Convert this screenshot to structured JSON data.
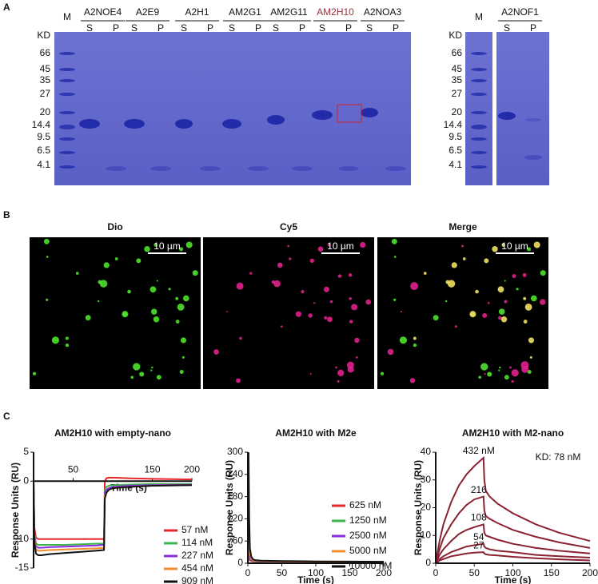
{
  "panel_labels": [
    "A",
    "B",
    "C"
  ],
  "gel_left": {
    "marker": "M",
    "unit": "KD",
    "weights": [
      "66",
      "45",
      "35",
      "27",
      "20",
      "14.4",
      "9.5",
      "6.5",
      "4.1"
    ],
    "lanes": [
      {
        "name": "A2NOE4",
        "fractions": [
          "S",
          "P"
        ]
      },
      {
        "name": "A2E9",
        "fractions": [
          "S",
          "P"
        ]
      },
      {
        "name": "A2H1",
        "fractions": [
          "S",
          "P"
        ]
      },
      {
        "name": "AM2G1",
        "fractions": [
          "S",
          "P"
        ]
      },
      {
        "name": "AM2G11",
        "fractions": [
          "S",
          "P"
        ]
      },
      {
        "name": "AM2H10",
        "fractions": [
          "S",
          "P"
        ],
        "color": "#a0303a"
      },
      {
        "name": "A2NOA3",
        "fractions": [
          "S",
          "P"
        ]
      }
    ]
  },
  "gel_right": {
    "marker": "M",
    "unit": "KD",
    "weights": [
      "66",
      "45",
      "35",
      "27",
      "20",
      "14.4",
      "9.5",
      "6.5",
      "4.1"
    ],
    "lanes": [
      {
        "name": "A2NOF1",
        "fractions": [
          "S",
          "P"
        ]
      }
    ]
  },
  "microscopy": {
    "panels": [
      {
        "title": "Dio",
        "scale_bar": "10 µm"
      },
      {
        "title": "Cy5",
        "scale_bar": "10 µm"
      },
      {
        "title": "Merge",
        "scale_bar": "10 µm"
      }
    ]
  },
  "chart_data": [
    {
      "type": "line",
      "title": "AM2H10 with empty-nano",
      "x_label": "Time (s)",
      "y_label": "Response Units (RU)",
      "x": [
        0,
        1,
        3,
        6,
        10,
        20,
        40,
        60,
        80,
        89,
        90,
        92,
        95,
        100,
        120,
        150,
        200
      ],
      "xlim": [
        0,
        200
      ],
      "xticks": [
        50,
        150,
        200
      ],
      "ylim": [
        -15,
        5
      ],
      "yticks": [
        -15,
        -10,
        0,
        5
      ],
      "legend": "lower right",
      "series": [
        {
          "name": "57 nM",
          "color": "#e8262a",
          "values": [
            0,
            -8,
            -9.8,
            -10,
            -10,
            -10,
            -10,
            -10,
            -10,
            -10,
            0,
            0.5,
            0.6,
            0.6,
            0.5,
            0.4,
            0.3
          ]
        },
        {
          "name": "114 nM",
          "color": "#3cb44b",
          "values": [
            0,
            -9,
            -10.8,
            -11,
            -11,
            -11,
            -11,
            -10.9,
            -10.8,
            -10.8,
            -1.5,
            -1,
            -0.8,
            -0.7,
            -0.6,
            -0.5,
            -0.5
          ]
        },
        {
          "name": "227 nM",
          "color": "#8b2be2",
          "values": [
            0,
            -9.5,
            -11.2,
            -11.5,
            -11.5,
            -11.4,
            -11.3,
            -11.2,
            -11.1,
            -11,
            -2,
            -1.5,
            -1.2,
            -1,
            -0.8,
            -0.7,
            -0.6
          ]
        },
        {
          "name": "454 nM",
          "color": "#f28c28",
          "values": [
            0,
            -10,
            -11.8,
            -12,
            -12,
            -11.9,
            -11.8,
            -11.7,
            -11.6,
            -11.5,
            -2.5,
            -2,
            -1.5,
            -1.2,
            -1,
            -0.8,
            -0.7
          ]
        },
        {
          "name": "909 nM",
          "color": "#111111",
          "values": [
            0,
            -10.5,
            -12.5,
            -12.8,
            -12.8,
            -12.6,
            -12.4,
            -12.2,
            -12,
            -11.9,
            -3,
            -2,
            -1.5,
            -1.2,
            -1,
            -0.8,
            -0.7
          ]
        }
      ]
    },
    {
      "type": "line",
      "title": "AM2H10 with M2e",
      "x_label": "Time (s)",
      "y_label": "Response Units (RU)",
      "x": [
        0,
        1,
        2,
        3,
        5,
        8,
        12,
        20,
        50,
        100,
        150,
        200
      ],
      "xlim": [
        0,
        200
      ],
      "xticks": [
        0,
        50,
        100,
        150,
        200
      ],
      "ylim": [
        0,
        300
      ],
      "yticks": [
        0,
        60,
        120,
        180,
        240,
        300
      ],
      "legend": "center right",
      "series": [
        {
          "name": "625 nM",
          "color": "#e8262a",
          "values": [
            0,
            20,
            12,
            8,
            6,
            5,
            4.5,
            4,
            3.5,
            3,
            2.5,
            2
          ]
        },
        {
          "name": "1250 nM",
          "color": "#3cb44b",
          "values": [
            0,
            40,
            20,
            12,
            8,
            6,
            5,
            4.5,
            4,
            3.5,
            3,
            2.5
          ]
        },
        {
          "name": "2500 nM",
          "color": "#8b2be2",
          "values": [
            0,
            70,
            30,
            15,
            9,
            7,
            6,
            5,
            4.5,
            4,
            3.5,
            3
          ]
        },
        {
          "name": "5000  nM",
          "color": "#f28c28",
          "values": [
            0,
            160,
            60,
            25,
            12,
            8,
            7,
            6,
            5,
            4.5,
            4,
            3.5
          ]
        },
        {
          "name": "10000 nM",
          "color": "#111111",
          "values": [
            0,
            300,
            120,
            40,
            18,
            10,
            8,
            7,
            6,
            5,
            4.5,
            4
          ]
        }
      ]
    },
    {
      "type": "line",
      "title": "AM2H10 with M2-nano",
      "x_label": "Time (s)",
      "y_label": "Response Units (RU)",
      "annotation": "KD: 78 nM",
      "x": [
        0,
        5,
        10,
        20,
        30,
        40,
        50,
        62,
        63,
        65,
        70,
        80,
        100,
        130,
        160,
        200
      ],
      "xlim": [
        0,
        200
      ],
      "xticks": [
        0,
        50,
        100,
        150,
        200
      ],
      "ylim": [
        0,
        40
      ],
      "yticks": [
        0,
        10,
        20,
        30,
        40
      ],
      "series": [
        {
          "name": "432 nM",
          "color": "#8b2232",
          "values": [
            0,
            8,
            14,
            22,
            28,
            32,
            35,
            38,
            30,
            26,
            24,
            21.5,
            18,
            14,
            11,
            8
          ]
        },
        {
          "name": "216",
          "color": "#8b2232",
          "values": [
            0,
            5,
            9,
            14,
            18,
            21,
            23,
            24,
            19,
            17,
            16,
            14.5,
            12,
            9.5,
            7.5,
            5.5
          ]
        },
        {
          "name": "108",
          "color": "#8b2232",
          "values": [
            0,
            3,
            5,
            8,
            10.5,
            12,
            13,
            14,
            11,
            10,
            9.5,
            8.5,
            7,
            5.5,
            4.5,
            3.5
          ]
        },
        {
          "name": "54",
          "color": "#8b2232",
          "values": [
            0,
            1.5,
            2.5,
            4,
            5,
            6,
            6.5,
            7,
            6,
            5.5,
            5,
            4.5,
            4,
            3,
            2.5,
            2
          ]
        },
        {
          "name": "27",
          "color": "#8b2232",
          "values": [
            0,
            1,
            1.5,
            2.5,
            3,
            3.5,
            3.8,
            4,
            3.5,
            3.2,
            3,
            2.8,
            2.3,
            1.8,
            1.4,
            1
          ]
        }
      ]
    }
  ]
}
